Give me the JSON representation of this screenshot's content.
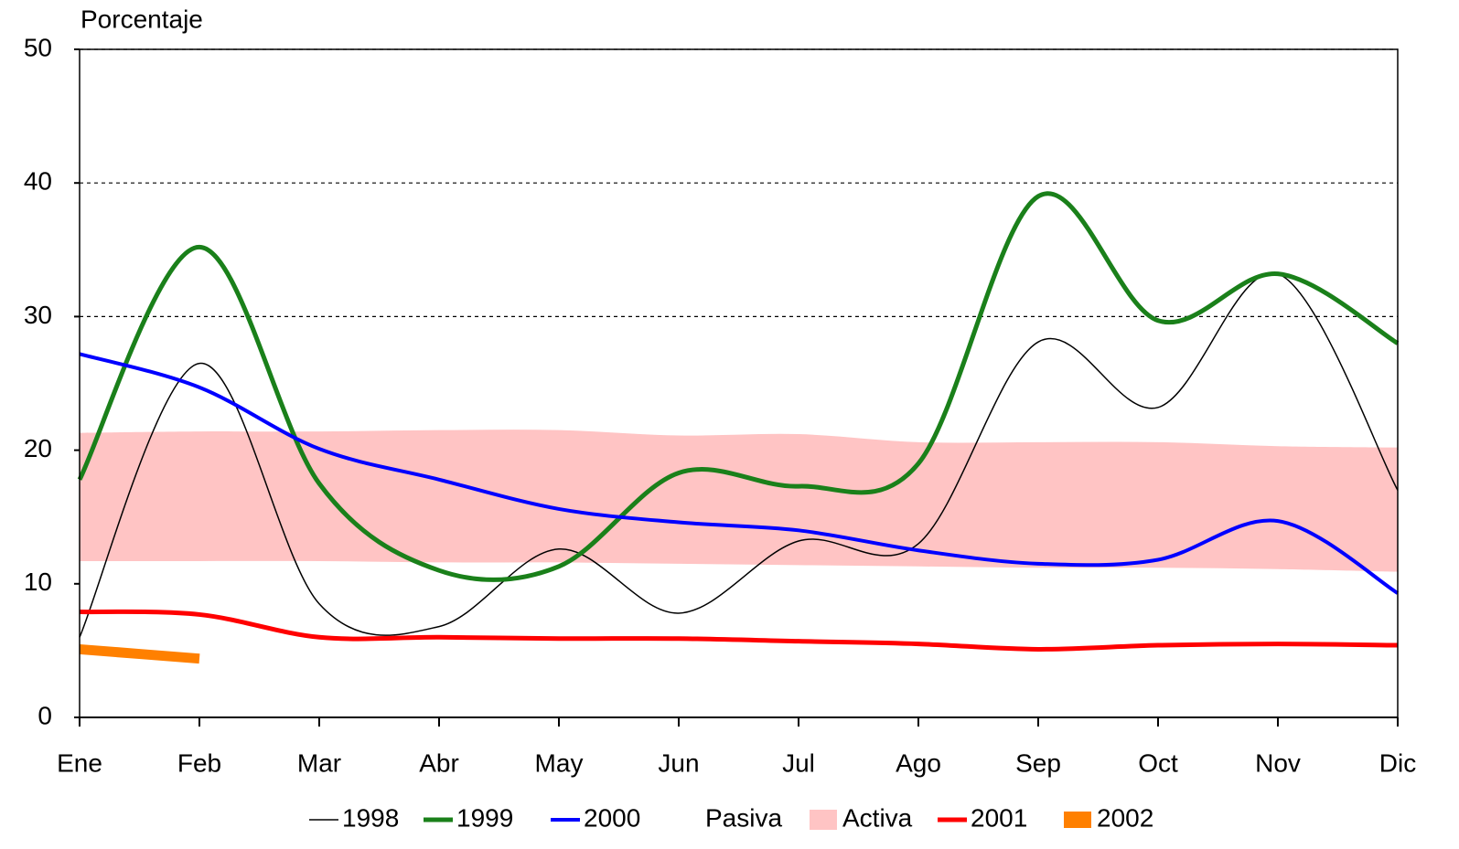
{
  "chart_data": {
    "type": "line",
    "y_label": "Porcentaje",
    "categories": [
      "Ene",
      "Feb",
      "Mar",
      "Abr",
      "May",
      "Jun",
      "Jul",
      "Ago",
      "Sep",
      "Oct",
      "Nov",
      "Dic"
    ],
    "ylim": [
      0,
      50
    ],
    "yticks": [
      0,
      10,
      20,
      30,
      40,
      50
    ],
    "grid": true,
    "legend": "bottom",
    "series": [
      {
        "name": "1998",
        "kind": "line",
        "color": "#000000",
        "line_width": 1.5,
        "values": [
          6,
          26.5,
          8.5,
          6.8,
          12.6,
          7.8,
          13.2,
          13,
          28.1,
          23.2,
          33.2,
          17
        ]
      },
      {
        "name": "1999",
        "kind": "line",
        "color": "#1a801a",
        "line_width": 5,
        "values": [
          17.8,
          35.2,
          17.5,
          11,
          11.3,
          18.3,
          17.3,
          19,
          39,
          29.7,
          33.2,
          28
        ]
      },
      {
        "name": "2000",
        "kind": "line",
        "color": "#0000ff",
        "line_width": 4,
        "values": [
          27.2,
          24.7,
          20.1,
          17.8,
          15.6,
          14.6,
          14,
          12.5,
          11.5,
          11.8,
          14.7,
          9.3
        ]
      },
      {
        "name": "Pasiva",
        "kind": "area",
        "color": "#ffffff",
        "values": [
          11.7,
          11.7,
          11.7,
          11.6,
          11.6,
          11.5,
          11.4,
          11.3,
          11.2,
          11.2,
          11.1,
          10.9
        ]
      },
      {
        "name": "Activa",
        "kind": "area",
        "color": "#ffc4c4",
        "values": [
          21.3,
          21.4,
          21.4,
          21.5,
          21.5,
          21.1,
          21.2,
          20.6,
          20.6,
          20.6,
          20.3,
          20.2
        ]
      },
      {
        "name": "2001",
        "kind": "line",
        "color": "#ff0000",
        "line_width": 5,
        "values": [
          7.9,
          7.7,
          6,
          6,
          5.9,
          5.9,
          5.7,
          5.5,
          5.1,
          5.4,
          5.5,
          5.4
        ]
      },
      {
        "name": "2002",
        "kind": "line",
        "color": "#ff8000",
        "line_width": 11,
        "values": [
          5.1,
          4.4,
          null,
          null,
          null,
          null,
          null,
          null,
          null,
          null,
          null,
          null
        ]
      }
    ]
  }
}
